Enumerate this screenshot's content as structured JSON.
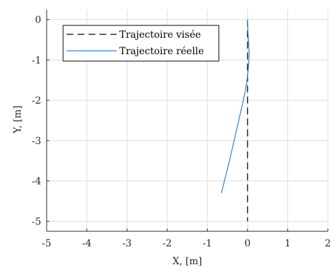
{
  "chart_data": {
    "type": "line",
    "xlabel": "X, [m]",
    "ylabel": "Y, [m]",
    "xlim": [
      -5,
      2
    ],
    "ylim": [
      -5.25,
      0.25
    ],
    "x_ticks": [
      -5,
      -4,
      -3,
      -2,
      -1,
      0,
      1,
      2
    ],
    "y_ticks": [
      0,
      -1,
      -2,
      -3,
      -4,
      -5
    ],
    "grid": true,
    "legend_position": "top-left",
    "series": [
      {
        "name": "Trajectoire visée",
        "style": "dashed",
        "color": "#000000",
        "x": [
          0,
          0
        ],
        "y": [
          0,
          -5
        ]
      },
      {
        "name": "Trajectoire réelle",
        "style": "solid",
        "color": "#2e7bd6",
        "x": [
          0.0,
          0.01,
          0.03,
          0.04,
          0.03,
          0.0,
          -0.05,
          -0.15,
          -0.3,
          -0.45,
          -0.6,
          -0.65
        ],
        "y": [
          0.0,
          -0.3,
          -0.6,
          -0.85,
          -1.1,
          -1.4,
          -1.75,
          -2.2,
          -2.85,
          -3.5,
          -4.1,
          -4.3
        ]
      }
    ]
  }
}
